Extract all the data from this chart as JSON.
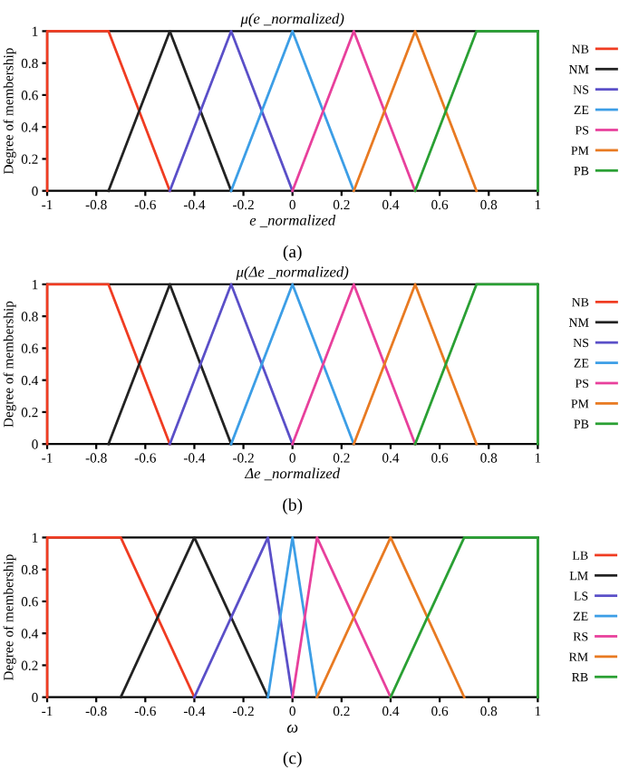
{
  "chart_data": [
    {
      "type": "line",
      "title": "μ(e _normalized)",
      "xlabel": "e _normalized",
      "ylabel": "Degree of membership",
      "annotations": [
        "(a)"
      ],
      "xlim": [
        -1,
        1
      ],
      "ylim": [
        0,
        1
      ],
      "xticks": [
        -1,
        -0.8,
        -0.6,
        -0.4,
        -0.2,
        0,
        0.2,
        0.4,
        0.6,
        0.8,
        1
      ],
      "yticks": [
        0,
        0.2,
        0.4,
        0.6,
        0.8,
        1
      ],
      "grid": false,
      "legend": "right",
      "marker": "none",
      "line_style": "solid",
      "series": [
        {
          "name": "NB",
          "color": "#f03c22",
          "x": [
            -1,
            -1,
            -0.75,
            -0.5
          ],
          "values": [
            0,
            1,
            1,
            0
          ]
        },
        {
          "name": "NM",
          "color": "#222222",
          "x": [
            -0.75,
            -0.5,
            -0.25
          ],
          "values": [
            0,
            1,
            0
          ]
        },
        {
          "name": "NS",
          "color": "#5a4fc8",
          "x": [
            -0.5,
            -0.25,
            0
          ],
          "values": [
            0,
            1,
            0
          ]
        },
        {
          "name": "ZE",
          "color": "#3c9ee6",
          "x": [
            -0.25,
            0,
            0.25
          ],
          "values": [
            0,
            1,
            0
          ]
        },
        {
          "name": "PS",
          "color": "#e8409c",
          "x": [
            0,
            0.25,
            0.5
          ],
          "values": [
            0,
            1,
            0
          ]
        },
        {
          "name": "PM",
          "color": "#e87a22",
          "x": [
            0.25,
            0.5,
            0.75
          ],
          "values": [
            0,
            1,
            0
          ]
        },
        {
          "name": "PB",
          "color": "#2aa034",
          "x": [
            0.5,
            0.75,
            1,
            1
          ],
          "values": [
            0,
            1,
            1,
            0
          ]
        }
      ]
    },
    {
      "type": "line",
      "title": "μ(Δe _normalized)",
      "xlabel": "Δe _normalized",
      "ylabel": "Degree of membership",
      "annotations": [
        "(b)"
      ],
      "xlim": [
        -1,
        1
      ],
      "ylim": [
        0,
        1
      ],
      "xticks": [
        -1,
        -0.8,
        -0.6,
        -0.4,
        -0.2,
        0,
        0.2,
        0.4,
        0.6,
        0.8,
        1
      ],
      "yticks": [
        0,
        0.2,
        0.4,
        0.6,
        0.8,
        1
      ],
      "grid": false,
      "legend": "right",
      "marker": "none",
      "line_style": "solid",
      "series": [
        {
          "name": "NB",
          "color": "#f03c22",
          "x": [
            -1,
            -1,
            -0.75,
            -0.5
          ],
          "values": [
            0,
            1,
            1,
            0
          ]
        },
        {
          "name": "NM",
          "color": "#222222",
          "x": [
            -0.75,
            -0.5,
            -0.25
          ],
          "values": [
            0,
            1,
            0
          ]
        },
        {
          "name": "NS",
          "color": "#5a4fc8",
          "x": [
            -0.5,
            -0.25,
            0
          ],
          "values": [
            0,
            1,
            0
          ]
        },
        {
          "name": "ZE",
          "color": "#3c9ee6",
          "x": [
            -0.25,
            0,
            0.25
          ],
          "values": [
            0,
            1,
            0
          ]
        },
        {
          "name": "PS",
          "color": "#e8409c",
          "x": [
            0,
            0.25,
            0.5
          ],
          "values": [
            0,
            1,
            0
          ]
        },
        {
          "name": "PM",
          "color": "#e87a22",
          "x": [
            0.25,
            0.5,
            0.75
          ],
          "values": [
            0,
            1,
            0
          ]
        },
        {
          "name": "PB",
          "color": "#2aa034",
          "x": [
            0.5,
            0.75,
            1,
            1
          ],
          "values": [
            0,
            1,
            1,
            0
          ]
        }
      ]
    },
    {
      "type": "line",
      "xlabel": "ω",
      "ylabel": "Degree of membership",
      "annotations": [
        "(c)"
      ],
      "xlim": [
        -1,
        1
      ],
      "ylim": [
        0,
        1
      ],
      "xticks": [
        -1,
        -0.8,
        -0.6,
        -0.4,
        -0.2,
        0,
        0.2,
        0.4,
        0.6,
        0.8,
        1
      ],
      "yticks": [
        0,
        0.2,
        0.4,
        0.6,
        0.8,
        1
      ],
      "grid": false,
      "legend": "right",
      "marker": "none",
      "line_style": "solid",
      "series": [
        {
          "name": "LB",
          "color": "#f03c22",
          "x": [
            -1,
            -1,
            -0.7,
            -0.4
          ],
          "values": [
            0,
            1,
            1,
            0
          ]
        },
        {
          "name": "LM",
          "color": "#222222",
          "x": [
            -0.7,
            -0.4,
            -0.1
          ],
          "values": [
            0,
            1,
            0
          ]
        },
        {
          "name": "LS",
          "color": "#5a4fc8",
          "x": [
            -0.4,
            -0.1,
            0
          ],
          "values": [
            0,
            1,
            0
          ]
        },
        {
          "name": "ZE",
          "color": "#3c9ee6",
          "x": [
            -0.1,
            0,
            0.1
          ],
          "values": [
            0,
            1,
            0
          ]
        },
        {
          "name": "RS",
          "color": "#e8409c",
          "x": [
            0,
            0.1,
            0.4
          ],
          "values": [
            0,
            1,
            0
          ]
        },
        {
          "name": "RM",
          "color": "#e87a22",
          "x": [
            0.1,
            0.4,
            0.7
          ],
          "values": [
            0,
            1,
            0
          ]
        },
        {
          "name": "RB",
          "color": "#2aa034",
          "x": [
            0.4,
            0.7,
            1,
            1
          ],
          "values": [
            0,
            1,
            1,
            0
          ]
        }
      ]
    }
  ]
}
